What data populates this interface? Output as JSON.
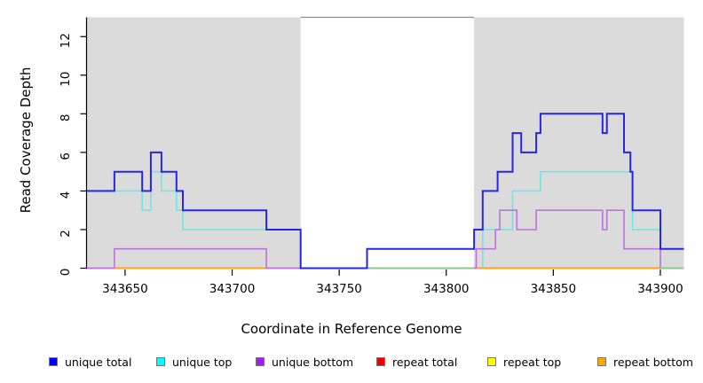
{
  "axes": {
    "x_title": "Coordinate in Reference Genome",
    "y_title": "Read Coverage Depth"
  },
  "chart_data": {
    "type": "line",
    "subtype": "step-coverage",
    "title": "",
    "xlabel": "Coordinate in Reference Genome",
    "ylabel": "Read Coverage Depth",
    "xlim": [
      343632,
      343911
    ],
    "ylim": [
      0,
      13
    ],
    "x_ticks": [
      343650,
      343700,
      343750,
      343800,
      343850,
      343900
    ],
    "y_ticks": [
      0,
      2,
      4,
      6,
      8,
      10,
      12
    ],
    "grid": false,
    "legend_position": "bottom",
    "shade_color": "#DBDBDB",
    "shaded_regions": [
      {
        "x0": 343632,
        "x1": 343732
      },
      {
        "x0": 343813,
        "x1": 343911
      }
    ],
    "gap_top_line": {
      "x0": 343732,
      "x1": 343813,
      "y": 13,
      "color": "#8A8A8A"
    },
    "series": [
      {
        "name": "repeat total",
        "color": "#DD0000",
        "width": 1.5,
        "steps": [
          [
            343632,
            0
          ]
        ]
      },
      {
        "name": "repeat top",
        "color": "#FFFF00",
        "width": 1.5,
        "steps": [
          [
            343632,
            0
          ]
        ]
      },
      {
        "name": "unique top",
        "color": "#6FE6E6",
        "width": 1.6,
        "steps": [
          [
            343632,
            4
          ],
          [
            343658,
            3
          ],
          [
            343662,
            5
          ],
          [
            343667,
            4
          ],
          [
            343674,
            3
          ],
          [
            343677,
            2
          ],
          [
            343732,
            0
          ],
          [
            343817,
            2
          ],
          [
            343831,
            4
          ],
          [
            343844,
            5
          ],
          [
            343887,
            2
          ],
          [
            343900,
            0
          ]
        ]
      },
      {
        "name": "repeat bottom",
        "color": "#FFA020",
        "width": 2,
        "steps": [
          [
            343632,
            0
          ]
        ]
      },
      {
        "name": "unique bottom",
        "color": "#BD72DF",
        "width": 1.6,
        "steps": [
          [
            343632,
            0
          ],
          [
            343645,
            1
          ],
          [
            343716,
            0
          ],
          [
            343814,
            1
          ],
          [
            343823,
            2
          ],
          [
            343825,
            3
          ],
          [
            343833,
            2
          ],
          [
            343842,
            3
          ],
          [
            343873,
            2
          ],
          [
            343875,
            3
          ],
          [
            343883,
            1
          ],
          [
            343900,
            0
          ]
        ]
      },
      {
        "name": "unique total",
        "color": "#2626E8",
        "width": 2,
        "steps": [
          [
            343632,
            4
          ],
          [
            343645,
            5
          ],
          [
            343658,
            4
          ],
          [
            343662,
            6
          ],
          [
            343667,
            5
          ],
          [
            343674,
            4
          ],
          [
            343677,
            3
          ],
          [
            343716,
            2
          ],
          [
            343732,
            0
          ],
          [
            343763,
            1
          ],
          [
            343813,
            2
          ],
          [
            343817,
            4
          ],
          [
            343824,
            5
          ],
          [
            343831,
            7
          ],
          [
            343835,
            6
          ],
          [
            343842,
            7
          ],
          [
            343844,
            8
          ],
          [
            343873,
            7
          ],
          [
            343875,
            8
          ],
          [
            343883,
            6
          ],
          [
            343886,
            5
          ],
          [
            343887,
            3
          ],
          [
            343900,
            1
          ]
        ]
      }
    ],
    "zero_overlap_segments": [
      {
        "x0": 343763,
        "x1": 343813,
        "y": 0,
        "color": "#8FCB8F"
      },
      {
        "x0": 343900,
        "x1": 343911,
        "y": 0,
        "color": "#8FCB8F"
      }
    ]
  },
  "legend": {
    "items": [
      {
        "label": "unique total",
        "color": "#0000FF"
      },
      {
        "label": "unique top",
        "color": "#00FFFF"
      },
      {
        "label": "unique bottom",
        "color": "#A020F0"
      },
      {
        "label": "repeat total",
        "color": "#EE0000"
      },
      {
        "label": "repeat top",
        "color": "#FFFF00"
      },
      {
        "label": "repeat bottom",
        "color": "#FFA500"
      }
    ]
  }
}
